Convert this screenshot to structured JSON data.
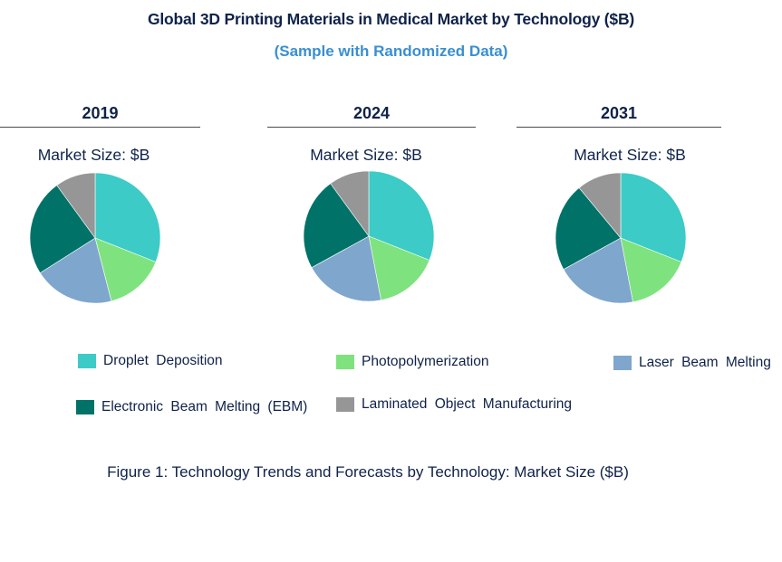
{
  "title": "Global 3D Printing Materials in Medical Market by Technology ($B)",
  "subtitle": "(Sample with Randomized Data)",
  "caption": "Figure 1: Technology Trends and Forecasts by Technology: Market Size ($B)",
  "chart_data": {
    "type": "pie",
    "categories": [
      "Droplet Deposition",
      "Photopolymerization",
      "Laser Beam Melting",
      "Electronic Beam Melting (EBM)",
      "Laminated Object Manufacturing"
    ],
    "colors": [
      "#3ccbc6",
      "#7ee37e",
      "#7fa6cc",
      "#007268",
      "#969696"
    ],
    "legend_position": "bottom",
    "panels": [
      {
        "year": "2019",
        "label": "Market Size: $B",
        "values": [
          31,
          15,
          20,
          24,
          10
        ]
      },
      {
        "year": "2024",
        "label": "Market Size: $B",
        "values": [
          31,
          16,
          20,
          23,
          10
        ]
      },
      {
        "year": "2031",
        "label": "Market Size: $B",
        "values": [
          31,
          16,
          20,
          22,
          11
        ]
      }
    ]
  }
}
